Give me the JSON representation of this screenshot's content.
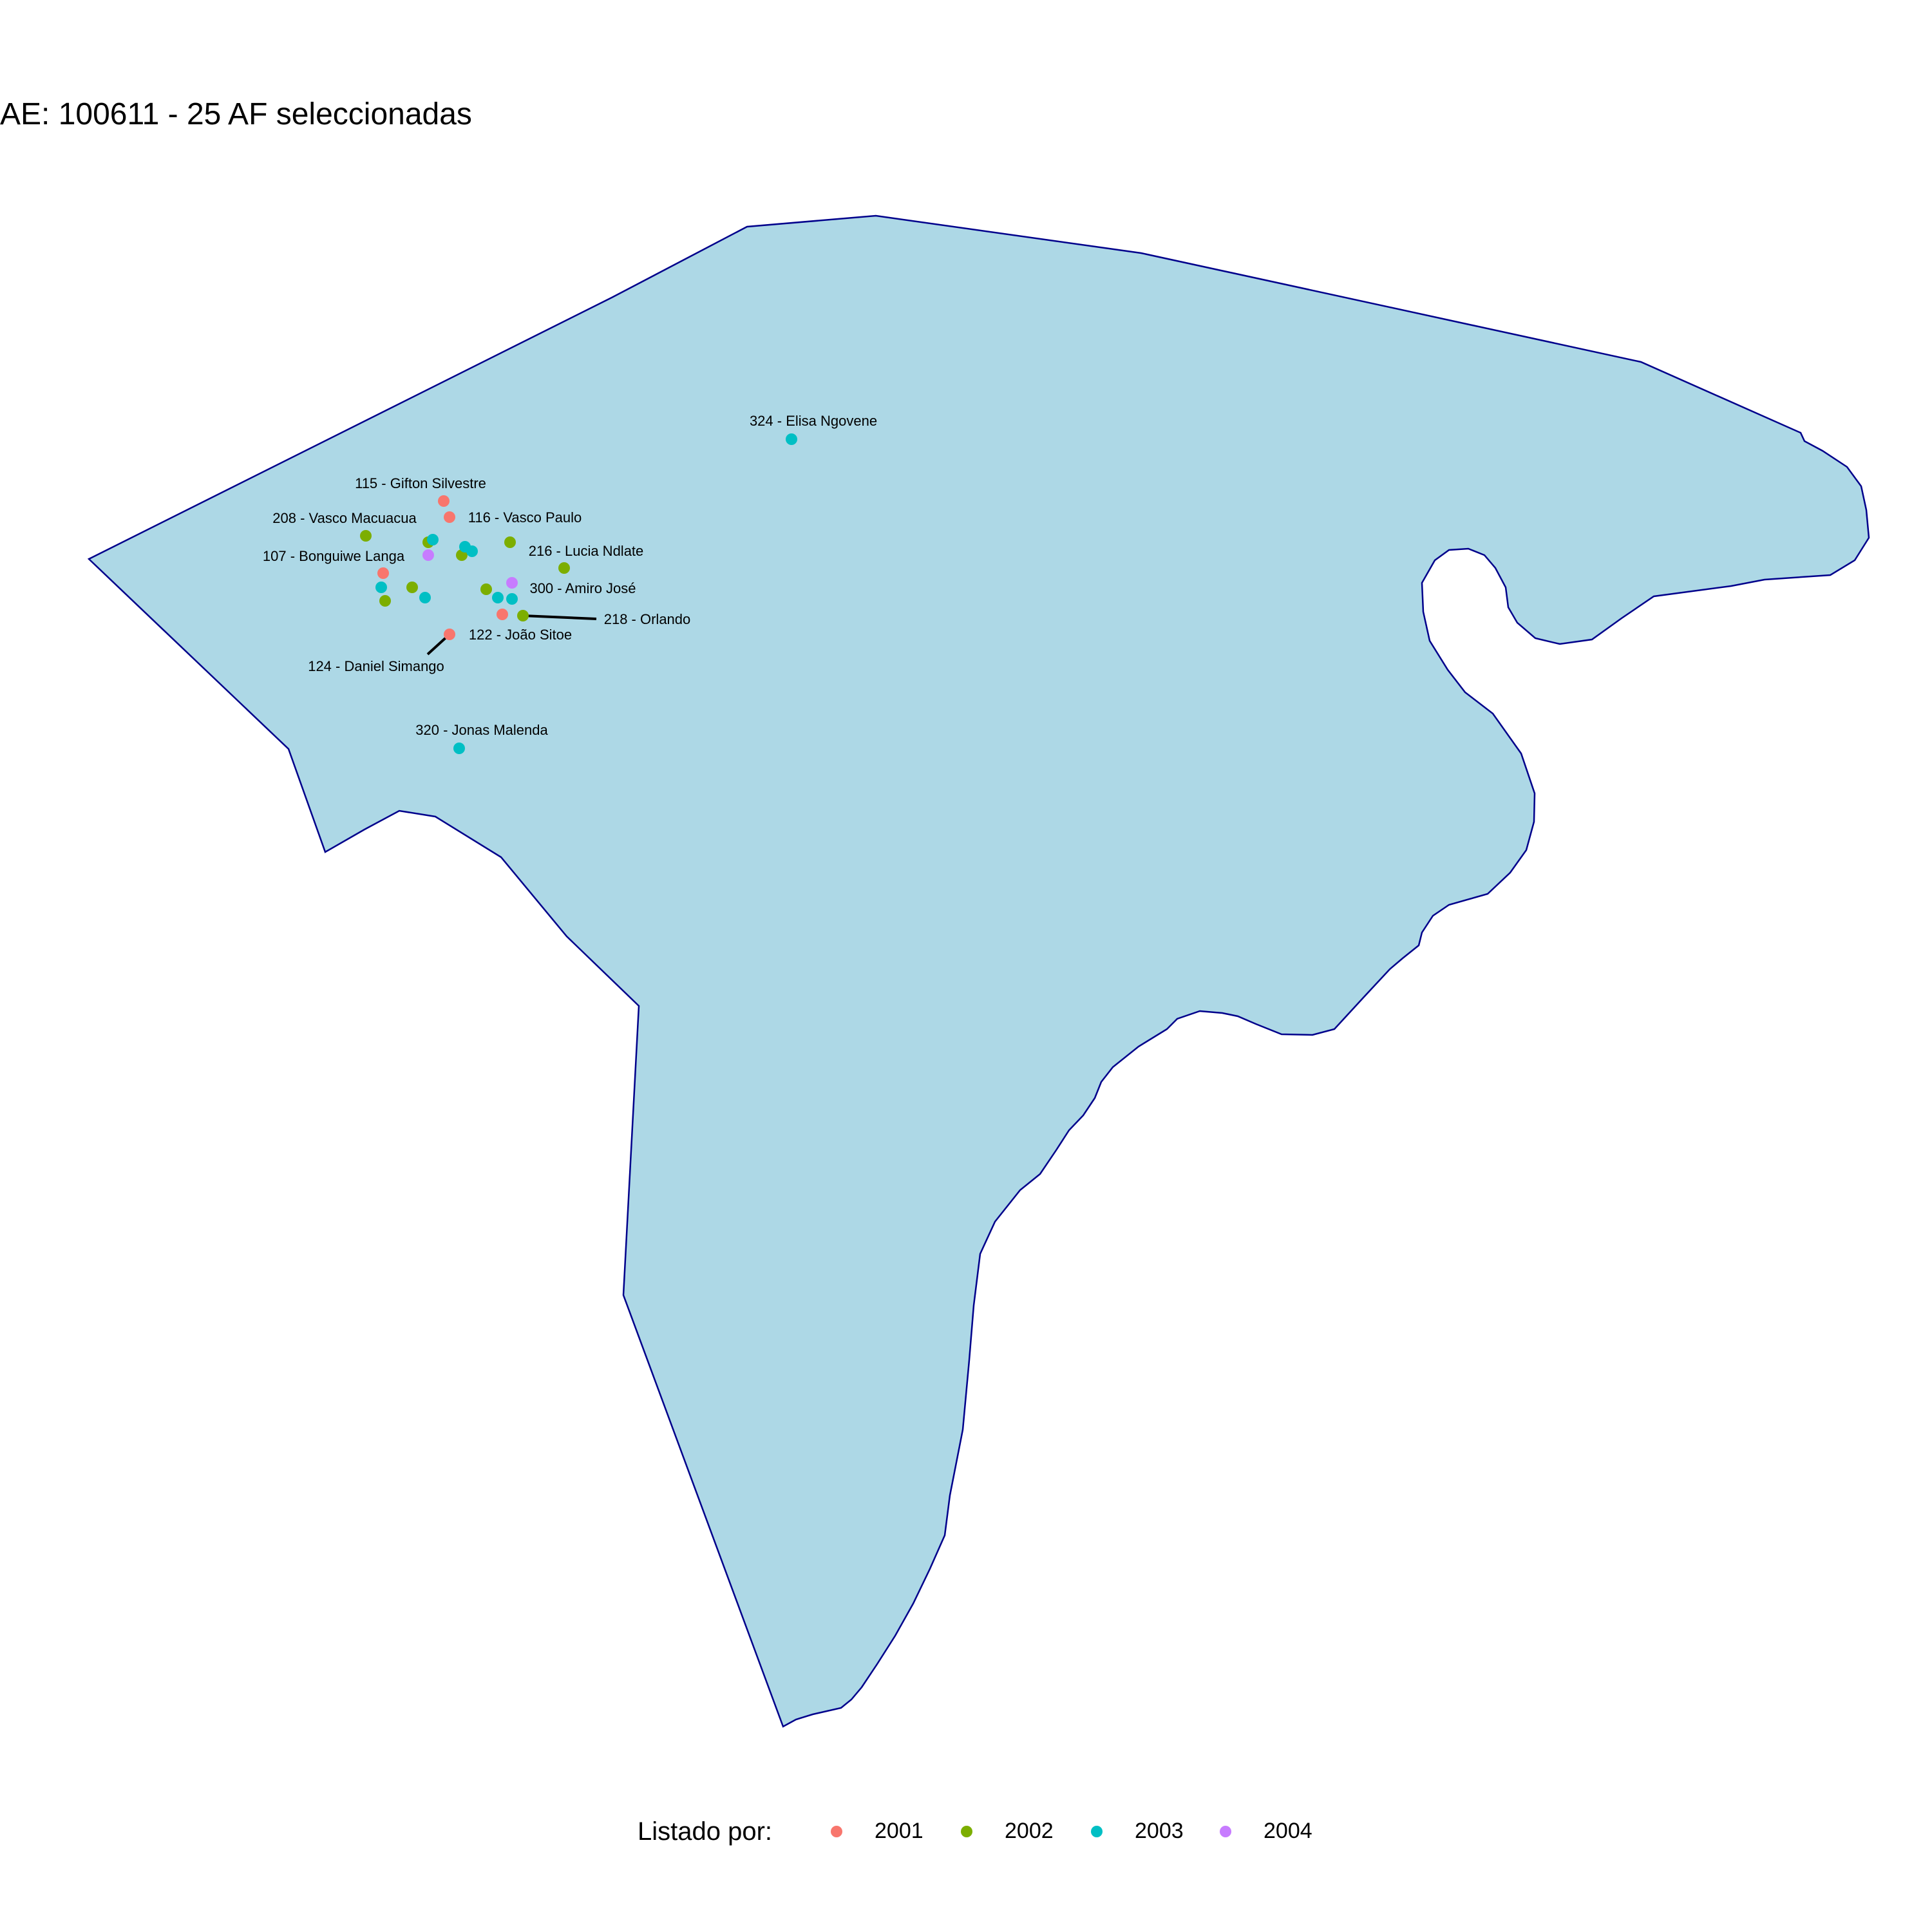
{
  "title": "AE: 100611 - 25  AF seleccionadas",
  "region": {
    "fill": "#add8e6",
    "stroke": "#00008b"
  },
  "legend": {
    "title": "Listado por:",
    "items": [
      {
        "label": "2001",
        "color": "#f8766d"
      },
      {
        "label": "2002",
        "color": "#7cae00"
      },
      {
        "label": "2003",
        "color": "#00bfc4"
      },
      {
        "label": "2004",
        "color": "#c77cff"
      }
    ]
  },
  "labels": {
    "l324": "324 - Elisa Ngovene",
    "l115": "115 - Gifton Silvestre",
    "l208": "208 - Vasco Macuacua",
    "l116": "116 - Vasco Paulo",
    "l107": "107 - Bonguiwe Langa",
    "l216": "216 - Lucia Ndlate",
    "l300": "300 - Amiro José",
    "l218": "218 - Orlando",
    "l122": "122 - João Sitoe",
    "l124": "124 - Daniel Simango",
    "l320": "320 - Jonas Malenda"
  }
}
